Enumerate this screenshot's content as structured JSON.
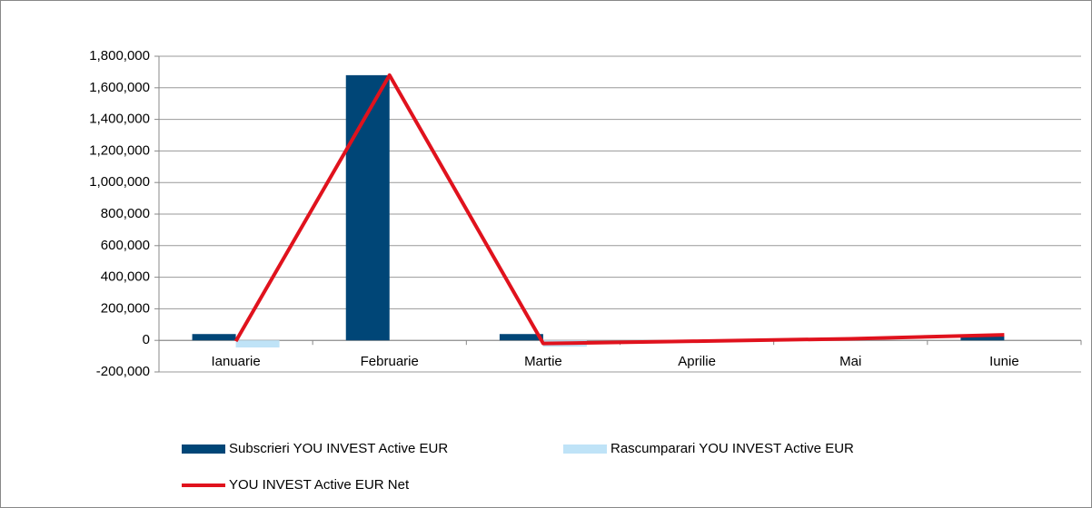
{
  "chart_data": {
    "type": "bar+line",
    "categories": [
      "Ianuarie",
      "Februarie",
      "Martie",
      "Aprilie",
      "Mai",
      "Iunie"
    ],
    "series": [
      {
        "name": "Subscrieri YOU INVEST Active EUR",
        "color": "#004677",
        "type": "bar",
        "values": [
          40000,
          1680000,
          40000,
          0,
          0,
          25000
        ]
      },
      {
        "name": "Rascumparari YOU INVEST Active EUR",
        "color": "#bfe3f7",
        "type": "bar",
        "values": [
          -45000,
          0,
          -40000,
          0,
          0,
          0
        ]
      },
      {
        "name": "YOU INVEST Active EUR Net",
        "color": "#e0121d",
        "type": "line",
        "values": [
          -5000,
          1680000,
          -20000,
          -5000,
          10000,
          35000
        ]
      }
    ],
    "ylim": [
      -200000,
      1800000
    ],
    "yticks": [
      {
        "value": -200000,
        "label": "-200,000"
      },
      0,
      {
        "value": 200000,
        "label": "200,000"
      },
      {
        "value": 400000,
        "label": "400,000"
      },
      {
        "value": 600000,
        "label": "600,000"
      },
      {
        "value": 800000,
        "label": "800,000"
      },
      {
        "value": 1000000,
        "label": "1,000,000"
      },
      {
        "value": 1200000,
        "label": "1,200,000"
      },
      {
        "value": 1400000,
        "label": "1,400,000"
      },
      {
        "value": 1600000,
        "label": "1,600,000"
      },
      {
        "value": 1800000,
        "label": "1,800,000"
      }
    ],
    "grid": true,
    "legend": "bottom"
  }
}
